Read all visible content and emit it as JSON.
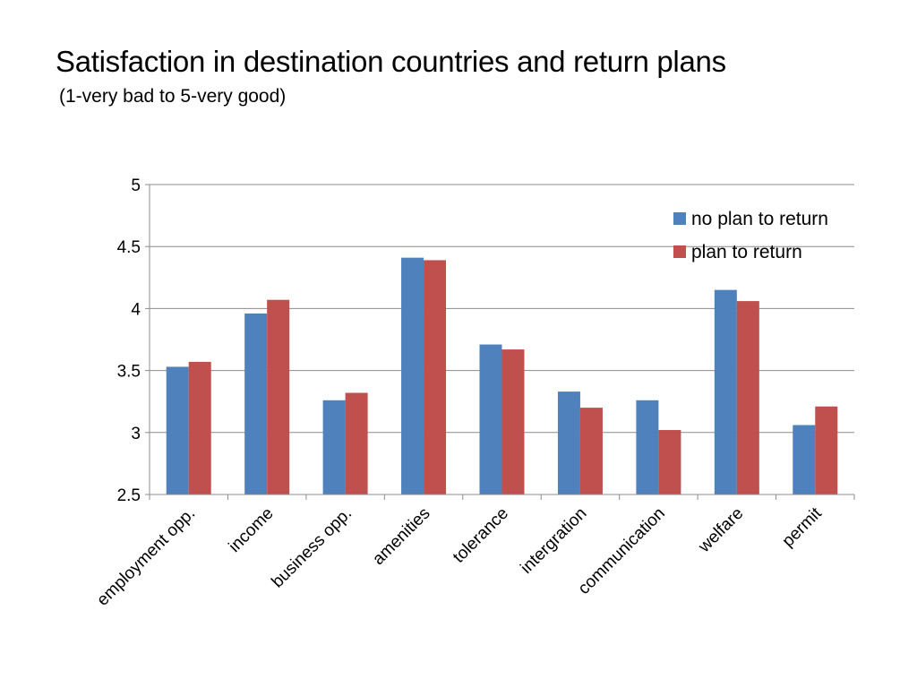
{
  "slide": {
    "title": "Satisfaction in destination countries and return plans",
    "subtitle": "(1-very bad to 5-very good)"
  },
  "chart_data": {
    "type": "bar",
    "categories": [
      "employment opp.",
      "income",
      "business opp.",
      "amenities",
      "tolerance",
      "intergration",
      "communication",
      "welfare",
      "permit"
    ],
    "series": [
      {
        "name": "no plan to return",
        "color": "#4f81bd",
        "values": [
          3.53,
          3.96,
          3.26,
          4.41,
          3.71,
          3.33,
          3.26,
          4.15,
          3.06
        ]
      },
      {
        "name": "plan to return",
        "color": "#c0504d",
        "values": [
          3.57,
          4.07,
          3.32,
          4.39,
          3.67,
          3.2,
          3.02,
          4.06,
          3.21
        ]
      }
    ],
    "ylim": [
      2.5,
      5
    ],
    "yticks": [
      "2.5",
      "3",
      "3.5",
      "4",
      "4.5",
      "5"
    ],
    "grid": true,
    "legend": "top-right"
  }
}
